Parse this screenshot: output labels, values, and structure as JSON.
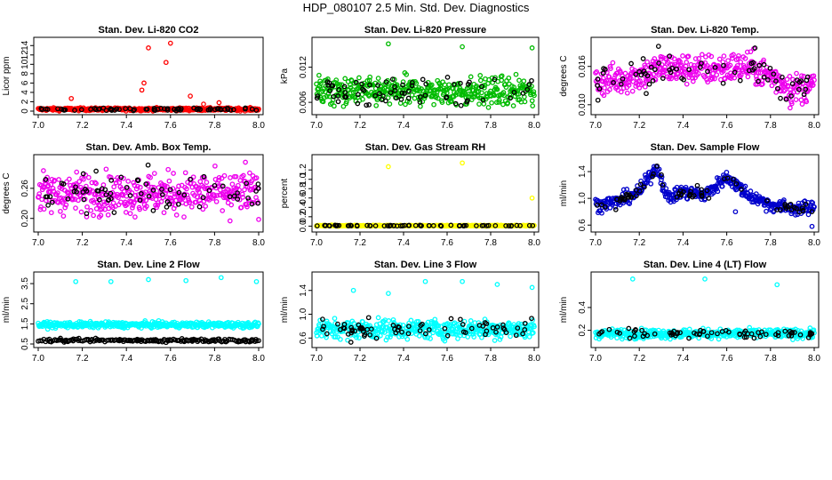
{
  "title": "HDP_080107  2.5 Min. Std. Dev. Diagnostics",
  "colors": {
    "background": "#ffffff",
    "axis": "#000000",
    "highlight": "#000000"
  },
  "chart_data": [
    {
      "type": "scatter",
      "title": "Stan. Dev. Li-820 CO2",
      "ylabel": "Licor ppm",
      "color": "#ff0000",
      "xlim": [
        7.0,
        8.0
      ],
      "xticks": [
        "7.0",
        "7.2",
        "7.4",
        "7.6",
        "7.8",
        "8.0"
      ],
      "ylim": [
        0,
        15
      ],
      "yticks": [
        "0",
        "2",
        "4",
        "6",
        "8",
        "10",
        "12",
        "14"
      ],
      "baseline": 0.4,
      "noise": 0.15,
      "trend": [],
      "outliers": [
        [
          7.15,
          2.7
        ],
        [
          7.47,
          4.5
        ],
        [
          7.5,
          13.5
        ],
        [
          7.58,
          10.4
        ],
        [
          7.6,
          14.5
        ],
        [
          7.48,
          6.0
        ],
        [
          7.69,
          3.2
        ],
        [
          7.75,
          1.5
        ],
        [
          7.82,
          1.8
        ]
      ]
    },
    {
      "type": "scatter",
      "title": "Stan. Dev. Li-820 Pressure",
      "ylabel": "kPa",
      "color": "#00bb00",
      "xlim": [
        7.0,
        8.0
      ],
      "xticks": [
        "7.0",
        "7.2",
        "7.4",
        "7.6",
        "7.8",
        "8.0"
      ],
      "ylim": [
        0.0045,
        0.0165
      ],
      "yticks": [
        "0.006",
        "0.012"
      ],
      "baseline": 0.0078,
      "noise": 0.0012,
      "trend": [],
      "outliers": [
        [
          7.33,
          0.016
        ],
        [
          7.67,
          0.0155
        ],
        [
          7.99,
          0.0153
        ],
        [
          7.02,
          0.0092
        ]
      ]
    },
    {
      "type": "scatter",
      "title": "Stan. Dev. Li-820 Temp.",
      "ylabel": "degrees C",
      "color": "#ee00ee",
      "xlim": [
        7.0,
        8.0
      ],
      "xticks": [
        "7.0",
        "7.2",
        "7.4",
        "7.6",
        "7.8",
        "8.0"
      ],
      "ylim": [
        0.009,
        0.02
      ],
      "yticks": [
        "0.010",
        "0.016"
      ],
      "baseline": 0.014,
      "noise": 0.0012,
      "trend": [
        [
          7.0,
          0.0135
        ],
        [
          7.2,
          0.0145
        ],
        [
          7.3,
          0.0158
        ],
        [
          7.5,
          0.0155
        ],
        [
          7.7,
          0.016
        ],
        [
          7.8,
          0.0145
        ],
        [
          7.9,
          0.0125
        ],
        [
          8.0,
          0.013
        ]
      ],
      "outliers": [
        [
          7.89,
          0.0095
        ]
      ]
    },
    {
      "type": "scatter",
      "title": "Stan. Dev. Amb. Box Temp.",
      "ylabel": "degrees C",
      "color": "#ee00ee",
      "xlim": [
        7.0,
        8.0
      ],
      "xticks": [
        "7.0",
        "7.2",
        "7.4",
        "7.6",
        "7.8",
        "8.0"
      ],
      "ylim": [
        0.18,
        0.32
      ],
      "yticks": [
        "0.20",
        "0.26"
      ],
      "baseline": 0.25,
      "noise": 0.02,
      "trend": [],
      "outliers": [
        [
          7.94,
          0.312
        ],
        [
          7.87,
          0.195
        ]
      ]
    },
    {
      "type": "scatter",
      "title": "Stan. Dev. Gas Stream RH",
      "ylabel": "percent",
      "color": "#ffff00",
      "xlim": [
        7.0,
        8.0
      ],
      "xticks": [
        "7.0",
        "7.2",
        "7.4",
        "7.6",
        "7.8",
        "8.0"
      ],
      "ylim": [
        -0.05,
        1.45
      ],
      "yticks": [
        "0.0",
        "0.2",
        "0.4",
        "0.6",
        "0.8",
        "1.0",
        "1.2"
      ],
      "baseline": 0.01,
      "noise": 0.005,
      "trend": [],
      "outliers": [
        [
          7.33,
          1.27
        ],
        [
          7.67,
          1.35
        ],
        [
          7.99,
          0.6
        ]
      ]
    },
    {
      "type": "scatter",
      "title": "Stan. Dev. Sample Flow",
      "ylabel": "ml/min",
      "color": "#0000cc",
      "xlim": [
        7.0,
        8.0
      ],
      "xticks": [
        "7.0",
        "7.2",
        "7.4",
        "7.6",
        "7.8",
        "8.0"
      ],
      "ylim": [
        0.55,
        1.6
      ],
      "yticks": [
        "0.6",
        "1.0",
        "1.4"
      ],
      "baseline": 1.0,
      "noise": 0.05,
      "trend": [
        [
          7.0,
          0.9
        ],
        [
          7.1,
          0.95
        ],
        [
          7.2,
          1.1
        ],
        [
          7.28,
          1.48
        ],
        [
          7.33,
          1.0
        ],
        [
          7.4,
          1.1
        ],
        [
          7.5,
          1.05
        ],
        [
          7.6,
          1.32
        ],
        [
          7.7,
          1.05
        ],
        [
          7.8,
          0.9
        ],
        [
          7.9,
          0.85
        ],
        [
          8.0,
          0.85
        ]
      ],
      "outliers": [
        [
          7.99,
          0.58
        ],
        [
          7.64,
          0.8
        ]
      ]
    },
    {
      "type": "scatter",
      "title": "Stan. Dev. Line 2 Flow",
      "ylabel": "ml/min",
      "color": "#00ffff",
      "xlim": [
        7.0,
        8.0
      ],
      "xticks": [
        "7.0",
        "7.2",
        "7.4",
        "7.6",
        "7.8",
        "8.0"
      ],
      "ylim": [
        0.5,
        3.9
      ],
      "yticks": [
        "0.5",
        "1.5",
        "2.5",
        "3.5"
      ],
      "baseline": 1.45,
      "noise": 0.07,
      "trend": [],
      "band2": {
        "baseline": 0.68,
        "noise": 0.04
      },
      "outliers": [
        [
          7.17,
          3.6
        ],
        [
          7.33,
          3.6
        ],
        [
          7.5,
          3.7
        ],
        [
          7.67,
          3.65
        ],
        [
          7.83,
          3.8
        ],
        [
          7.99,
          3.6
        ]
      ]
    },
    {
      "type": "scatter",
      "title": "Stan. Dev. Line 3 Flow",
      "ylabel": "ml/min",
      "color": "#00ffff",
      "xlim": [
        7.0,
        8.0
      ],
      "xticks": [
        "7.0",
        "7.2",
        "7.4",
        "7.6",
        "7.8",
        "8.0"
      ],
      "ylim": [
        0.5,
        1.65
      ],
      "yticks": [
        "0.6",
        "1.0",
        "1.4"
      ],
      "baseline": 0.75,
      "noise": 0.08,
      "trend": [],
      "outliers": [
        [
          7.17,
          1.4
        ],
        [
          7.33,
          1.35
        ],
        [
          7.5,
          1.55
        ],
        [
          7.67,
          1.55
        ],
        [
          7.83,
          1.5
        ],
        [
          7.99,
          1.45
        ]
      ]
    },
    {
      "type": "scatter",
      "title": "Stan. Dev. Line 4 (LT) Flow",
      "ylabel": "ml/min",
      "color": "#00ffff",
      "xlim": [
        7.0,
        8.0
      ],
      "xticks": [
        "7.0",
        "7.2",
        "7.4",
        "7.6",
        "7.8",
        "8.0"
      ],
      "ylim": [
        0.08,
        0.68
      ],
      "yticks": [
        "0.2",
        "0.4"
      ],
      "baseline": 0.17,
      "noise": 0.02,
      "trend": [],
      "outliers": [
        [
          7.17,
          0.65
        ],
        [
          7.5,
          0.65
        ],
        [
          7.83,
          0.6
        ]
      ]
    }
  ]
}
